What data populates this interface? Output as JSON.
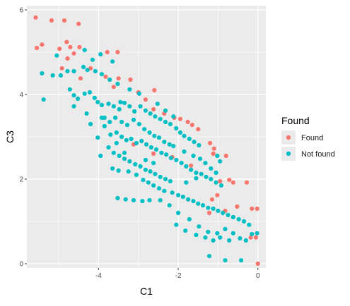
{
  "chart_data": {
    "type": "scatter",
    "title": "",
    "xlabel": "C1",
    "ylabel": "C3",
    "xlim": [
      -5.8,
      0.2
    ],
    "ylim": [
      -0.1,
      6.1
    ],
    "xticks": [
      -4,
      -2,
      0
    ],
    "yticks": [
      0,
      2,
      4,
      6
    ],
    "xtick_labels": [
      "-4",
      "-2",
      "0"
    ],
    "ytick_labels": [
      "0",
      "2",
      "4",
      "6"
    ],
    "grid": true,
    "legend": {
      "title": "Found",
      "placement": "right",
      "entries": [
        "Found",
        "Not found"
      ]
    },
    "series": [
      {
        "name": "Found",
        "color": "#F8766D",
        "points": [
          [
            -5.58,
            5.82
          ],
          [
            -5.18,
            5.75
          ],
          [
            -4.86,
            5.75
          ],
          [
            -4.5,
            5.67
          ],
          [
            -5.55,
            5.1
          ],
          [
            -5.42,
            5.18
          ],
          [
            -4.8,
            5.24
          ],
          [
            -4.71,
            5.12
          ],
          [
            -4.48,
            5.12
          ],
          [
            -4.62,
            4.97
          ],
          [
            -4.98,
            5.08
          ],
          [
            -3.78,
            5.0
          ],
          [
            -3.52,
            5.0
          ],
          [
            -4.78,
            4.85
          ],
          [
            -4.92,
            4.62
          ],
          [
            -4.45,
            4.38
          ],
          [
            -4.2,
            4.62
          ],
          [
            -3.82,
            4.42
          ],
          [
            -3.5,
            4.38
          ],
          [
            -3.2,
            4.35
          ],
          [
            -3.62,
            4.18
          ],
          [
            -3.0,
            4.05
          ],
          [
            -2.6,
            4.1
          ],
          [
            -2.82,
            3.88
          ],
          [
            -2.62,
            3.65
          ],
          [
            -2.35,
            3.55
          ],
          [
            -2.1,
            3.45
          ],
          [
            -1.95,
            3.42
          ],
          [
            -1.76,
            3.35
          ],
          [
            -1.65,
            3.28
          ],
          [
            -1.5,
            3.18
          ],
          [
            -1.2,
            2.85
          ],
          [
            -1.1,
            2.72
          ],
          [
            -1.12,
            2.6
          ],
          [
            -0.8,
            2.55
          ],
          [
            -2.62,
            2.6
          ],
          [
            -3.12,
            2.82
          ],
          [
            -2.15,
            2.52
          ],
          [
            -1.68,
            2.32
          ],
          [
            -0.72,
            1.98
          ],
          [
            -0.95,
            1.95
          ],
          [
            -0.62,
            1.92
          ],
          [
            -0.28,
            1.92
          ],
          [
            -1.02,
            1.62
          ],
          [
            -1.15,
            1.52
          ],
          [
            -0.52,
            1.35
          ],
          [
            -0.82,
            1.25
          ],
          [
            -1.22,
            1.2
          ],
          [
            -0.15,
            1.3
          ],
          [
            -0.02,
            1.3
          ],
          [
            -0.05,
            0.62
          ],
          [
            -0.18,
            0.62
          ],
          [
            0.0,
            0.0
          ]
        ]
      },
      {
        "name": "Not found",
        "color": "#00BFC4",
        "points": [
          [
            -5.42,
            4.5
          ],
          [
            -5.38,
            3.88
          ],
          [
            -5.15,
            4.45
          ],
          [
            -4.95,
            4.45
          ],
          [
            -4.78,
            4.55
          ],
          [
            -4.62,
            4.55
          ],
          [
            -4.38,
            4.65
          ],
          [
            -4.28,
            4.58
          ],
          [
            -5.05,
            4.92
          ],
          [
            -4.35,
            5.05
          ],
          [
            -4.15,
            4.82
          ],
          [
            -3.95,
            4.95
          ],
          [
            -3.65,
            4.78
          ],
          [
            -4.72,
            4.12
          ],
          [
            -4.62,
            3.98
          ],
          [
            -4.52,
            3.9
          ],
          [
            -4.35,
            4.02
          ],
          [
            -4.22,
            4.05
          ],
          [
            -4.1,
            3.92
          ],
          [
            -4.02,
            3.82
          ],
          [
            -3.92,
            3.75
          ],
          [
            -3.75,
            3.78
          ],
          [
            -3.62,
            3.72
          ],
          [
            -3.48,
            3.65
          ],
          [
            -3.35,
            3.8
          ],
          [
            -3.22,
            3.72
          ],
          [
            -3.1,
            3.6
          ],
          [
            -2.95,
            3.72
          ],
          [
            -2.82,
            3.62
          ],
          [
            -2.7,
            3.55
          ],
          [
            -2.58,
            3.48
          ],
          [
            -2.45,
            3.42
          ],
          [
            -2.32,
            3.35
          ],
          [
            -2.2,
            3.3
          ],
          [
            -2.05,
            3.2
          ],
          [
            -1.95,
            3.1
          ],
          [
            -1.85,
            3.02
          ],
          [
            -1.72,
            2.95
          ],
          [
            -1.6,
            2.88
          ],
          [
            -1.48,
            2.8
          ],
          [
            -4.3,
            3.55
          ],
          [
            -4.2,
            3.3
          ],
          [
            -3.85,
            3.25
          ],
          [
            -3.7,
            3.05
          ],
          [
            -3.55,
            3.1
          ],
          [
            -3.42,
            3.0
          ],
          [
            -3.3,
            2.92
          ],
          [
            -3.18,
            2.95
          ],
          [
            -3.05,
            2.85
          ],
          [
            -2.92,
            2.9
          ],
          [
            -2.8,
            2.82
          ],
          [
            -2.68,
            2.75
          ],
          [
            -2.55,
            2.7
          ],
          [
            -2.42,
            2.62
          ],
          [
            -2.3,
            2.58
          ],
          [
            -2.18,
            2.5
          ],
          [
            -2.05,
            2.45
          ],
          [
            -1.92,
            2.38
          ],
          [
            -1.8,
            2.3
          ],
          [
            -1.68,
            2.22
          ],
          [
            -1.55,
            2.15
          ],
          [
            -1.42,
            2.12
          ],
          [
            -1.3,
            2.05
          ],
          [
            -1.18,
            2.0
          ],
          [
            -1.05,
            1.92
          ],
          [
            -0.92,
            1.85
          ],
          [
            -3.85,
            3.45
          ],
          [
            -3.72,
            3.35
          ],
          [
            -3.58,
            3.45
          ],
          [
            -3.42,
            3.35
          ],
          [
            -3.28,
            3.28
          ],
          [
            -3.12,
            3.4
          ],
          [
            -2.98,
            3.3
          ],
          [
            -2.85,
            3.18
          ],
          [
            -2.72,
            3.1
          ],
          [
            -2.6,
            3.02
          ],
          [
            -2.48,
            2.98
          ],
          [
            -2.35,
            2.88
          ],
          [
            -2.22,
            2.82
          ],
          [
            -3.75,
            2.75
          ],
          [
            -3.62,
            2.62
          ],
          [
            -3.48,
            2.55
          ],
          [
            -3.35,
            2.48
          ],
          [
            -3.22,
            2.42
          ],
          [
            -3.08,
            2.35
          ],
          [
            -2.95,
            2.3
          ],
          [
            -2.82,
            2.22
          ],
          [
            -2.7,
            2.18
          ],
          [
            -2.58,
            2.12
          ],
          [
            -2.45,
            2.05
          ],
          [
            -2.32,
            2.0
          ],
          [
            -2.2,
            1.95
          ],
          [
            -3.65,
            2.25
          ],
          [
            -3.5,
            2.2
          ],
          [
            -3.25,
            2.18
          ],
          [
            -3.05,
            2.1
          ],
          [
            -2.88,
            1.98
          ],
          [
            -2.75,
            1.92
          ],
          [
            -2.62,
            1.85
          ],
          [
            -2.48,
            1.78
          ],
          [
            -2.35,
            1.72
          ],
          [
            -2.15,
            1.68
          ],
          [
            -2.0,
            1.62
          ],
          [
            -1.88,
            1.58
          ],
          [
            -1.75,
            1.52
          ],
          [
            -1.62,
            1.48
          ],
          [
            -1.5,
            1.42
          ],
          [
            -1.38,
            1.38
          ],
          [
            -1.25,
            1.32
          ],
          [
            -1.12,
            1.3
          ],
          [
            -1.0,
            1.25
          ],
          [
            -0.88,
            1.2
          ],
          [
            -0.75,
            1.15
          ],
          [
            -0.62,
            1.1
          ],
          [
            -0.48,
            1.05
          ],
          [
            -0.35,
            1.0
          ],
          [
            -0.22,
            0.92
          ],
          [
            -2.45,
            1.5
          ],
          [
            -2.22,
            1.38
          ],
          [
            -2.72,
            1.5
          ],
          [
            -2.9,
            1.48
          ],
          [
            -3.12,
            1.5
          ],
          [
            -3.32,
            1.52
          ],
          [
            -3.52,
            1.55
          ],
          [
            -2.0,
            1.2
          ],
          [
            -1.72,
            1.05
          ],
          [
            -1.48,
            0.88
          ],
          [
            -1.25,
            0.75
          ],
          [
            -1.02,
            0.72
          ],
          [
            -0.82,
            0.82
          ],
          [
            -0.62,
            0.72
          ],
          [
            -0.45,
            0.6
          ],
          [
            -0.3,
            0.55
          ],
          [
            -0.02,
            0.72
          ],
          [
            -0.15,
            0.7
          ],
          [
            -2.05,
            0.92
          ],
          [
            -1.82,
            0.78
          ],
          [
            -1.55,
            0.68
          ],
          [
            -1.32,
            0.62
          ],
          [
            -1.12,
            0.55
          ],
          [
            -1.22,
            0.18
          ],
          [
            -0.82,
            0.08
          ],
          [
            -0.42,
            0.08
          ],
          [
            -0.95,
            0.62
          ],
          [
            -0.72,
            0.55
          ],
          [
            -4.62,
            3.72
          ],
          [
            -3.92,
            3.45
          ],
          [
            -4.02,
            2.98
          ],
          [
            -3.95,
            2.55
          ],
          [
            -3.45,
            3.82
          ],
          [
            -2.12,
            2.78
          ],
          [
            -1.85,
            2.65
          ],
          [
            -1.62,
            2.55
          ],
          [
            -1.45,
            2.48
          ],
          [
            -1.32,
            2.38
          ],
          [
            -1.18,
            2.25
          ],
          [
            -1.05,
            2.15
          ],
          [
            -0.95,
            2.42
          ],
          [
            -1.02,
            2.55
          ],
          [
            -1.55,
            2.02
          ],
          [
            -1.8,
            1.92
          ],
          [
            -2.62,
            2.38
          ],
          [
            -2.82,
            2.45
          ],
          [
            -3.35,
            2.62
          ],
          [
            -3.55,
            2.85
          ],
          [
            -2.52,
            3.78
          ],
          [
            -2.32,
            3.62
          ],
          [
            -2.12,
            3.48
          ],
          [
            -2.98,
            4.02
          ],
          [
            -3.22,
            4.12
          ],
          [
            -3.52,
            4.25
          ],
          [
            -3.72,
            4.35
          ],
          [
            -3.92,
            4.48
          ],
          [
            -4.08,
            4.55
          ]
        ]
      }
    ]
  }
}
